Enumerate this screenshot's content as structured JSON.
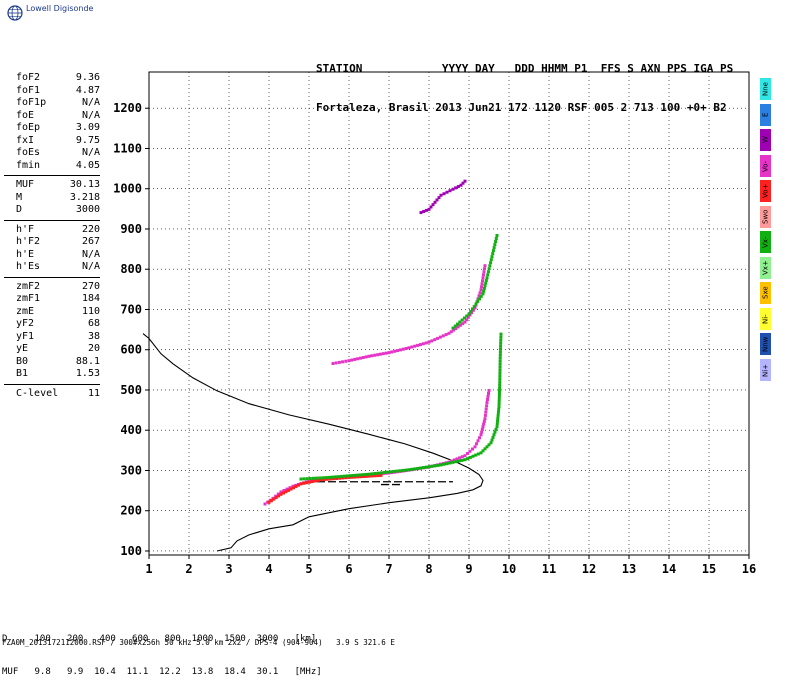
{
  "brand": {
    "logo_text": "Lowell Digisonde",
    "logo_icon": "globe-icon"
  },
  "header": {
    "line1": "STATION            YYYY DAY   DDD HHMM P1  FFS S AXN PPS IGA PS",
    "line2": "Fortaleza, Brasil 2013 Jun21 172 1120 RSF 005 2 713 100 +0+ B2"
  },
  "parameters": {
    "group1": [
      {
        "name": "foF2",
        "value": "9.36"
      },
      {
        "name": "foF1",
        "value": "4.87"
      },
      {
        "name": "foF1p",
        "value": "N/A"
      },
      {
        "name": "foE",
        "value": "N/A"
      },
      {
        "name": "foEp",
        "value": "3.09"
      },
      {
        "name": "fxI",
        "value": "9.75"
      },
      {
        "name": "foEs",
        "value": "N/A"
      },
      {
        "name": "fmin",
        "value": "4.05"
      }
    ],
    "group2": [
      {
        "name": "MUF",
        "value": "30.13"
      },
      {
        "name": "M",
        "value": "3.218"
      },
      {
        "name": "D",
        "value": "3000"
      }
    ],
    "group3": [
      {
        "name": "h'F",
        "value": "220"
      },
      {
        "name": "h'F2",
        "value": "267"
      },
      {
        "name": "h'E",
        "value": "N/A"
      },
      {
        "name": "h'Es",
        "value": "N/A"
      }
    ],
    "group4": [
      {
        "name": "zmF2",
        "value": "270"
      },
      {
        "name": "zmF1",
        "value": "184"
      },
      {
        "name": "zmE",
        "value": "110"
      },
      {
        "name": "yF2",
        "value": "68"
      },
      {
        "name": "yF1",
        "value": "38"
      },
      {
        "name": "yE",
        "value": "20"
      },
      {
        "name": "B0",
        "value": "88.1"
      },
      {
        "name": "B1",
        "value": "1.53"
      }
    ],
    "group5": [
      {
        "name": "C-level",
        "value": "11"
      }
    ]
  },
  "legend": [
    {
      "label": "Nne",
      "color": "#33e6e6"
    },
    {
      "label": "E",
      "color": "#2a7fe0"
    },
    {
      "label": "W",
      "color": "#a000b4"
    },
    {
      "label": "Vo-",
      "color": "#e633c8"
    },
    {
      "label": "Vo+",
      "color": "#ff2020"
    },
    {
      "label": "Swo",
      "color": "#ff9a9a"
    },
    {
      "label": "Vx-",
      "color": "#10b010"
    },
    {
      "label": "Vx+",
      "color": "#90f090"
    },
    {
      "label": "Sxe",
      "color": "#ffc000"
    },
    {
      "label": "Ni-",
      "color": "#ffff30"
    },
    {
      "label": "Nnw",
      "color": "#2050b0"
    },
    {
      "label": "Ni+",
      "color": "#b4b4ff"
    }
  ],
  "footer": {
    "d_row": "D     100   200   400   600   800  1000  1500  3000   [km]",
    "muf_row": "MUF   9.8   9.9  10.4  11.1  12.2  13.8  18.4  30.1   [MHz]",
    "file_line": "FZA0M_2013172112000.RSF / 300#x256h 50 kHz 5.0 km 2x2 / DPS-4 (904-904)   3.9 S 321.6 E"
  },
  "chart_data": {
    "type": "scatter",
    "title": "",
    "xlabel": "",
    "ylabel": "",
    "xlim": [
      1,
      16
    ],
    "ylim": [
      90,
      1290
    ],
    "x_ticks": [
      1,
      2,
      3,
      4,
      5,
      6,
      7,
      8,
      9,
      10,
      11,
      12,
      13,
      14,
      15,
      16
    ],
    "y_ticks": [
      100,
      200,
      300,
      400,
      500,
      600,
      700,
      800,
      900,
      1000,
      1100,
      1200
    ],
    "grid": "dotted",
    "series": [
      {
        "label_color": "#e633c8",
        "points": [
          [
            3.9,
            218
          ],
          [
            4.1,
            232
          ],
          [
            4.3,
            248
          ],
          [
            4.6,
            262
          ],
          [
            5.0,
            275
          ],
          [
            5.5,
            282
          ],
          [
            6.0,
            287
          ],
          [
            6.5,
            291
          ],
          [
            7.0,
            295
          ],
          [
            7.5,
            302
          ],
          [
            8.0,
            310
          ],
          [
            8.5,
            322
          ],
          [
            8.9,
            338
          ],
          [
            9.15,
            360
          ],
          [
            9.3,
            390
          ],
          [
            9.4,
            430
          ],
          [
            9.45,
            470
          ],
          [
            9.5,
            500
          ]
        ]
      },
      {
        "label_color": "#ff2020",
        "points": [
          [
            4.0,
            222
          ],
          [
            4.3,
            242
          ],
          [
            4.8,
            268
          ],
          [
            5.3,
            278
          ],
          [
            6.0,
            284
          ],
          [
            6.8,
            289
          ]
        ]
      },
      {
        "label_color": "#10b010",
        "points": [
          [
            4.8,
            280
          ],
          [
            5.5,
            284
          ],
          [
            6.5,
            292
          ],
          [
            7.5,
            303
          ],
          [
            8.3,
            315
          ],
          [
            8.9,
            328
          ],
          [
            9.3,
            345
          ],
          [
            9.55,
            370
          ],
          [
            9.7,
            410
          ],
          [
            9.75,
            460
          ],
          [
            9.77,
            520
          ],
          [
            9.78,
            580
          ],
          [
            9.8,
            640
          ]
        ]
      },
      {
        "label_color": "#e633c8",
        "points": [
          [
            5.6,
            567
          ],
          [
            6.0,
            574
          ],
          [
            6.5,
            585
          ],
          [
            7.0,
            594
          ],
          [
            7.5,
            606
          ],
          [
            8.0,
            620
          ],
          [
            8.5,
            642
          ],
          [
            8.9,
            670
          ],
          [
            9.15,
            705
          ],
          [
            9.3,
            750
          ],
          [
            9.35,
            780
          ],
          [
            9.4,
            810
          ]
        ]
      },
      {
        "label_color": "#a000b4",
        "points": [
          [
            7.8,
            942
          ],
          [
            8.0,
            950
          ],
          [
            8.3,
            985
          ],
          [
            8.6,
            1000
          ],
          [
            8.8,
            1010
          ],
          [
            8.9,
            1020
          ]
        ]
      },
      {
        "label_color": "#10b010",
        "points": [
          [
            8.6,
            655
          ],
          [
            9.0,
            690
          ],
          [
            9.35,
            740
          ],
          [
            9.45,
            780
          ],
          [
            9.7,
            885
          ]
        ]
      }
    ],
    "profile": [
      [
        0.85,
        640
      ],
      [
        1.0,
        628
      ],
      [
        1.3,
        590
      ],
      [
        1.6,
        565
      ],
      [
        2.1,
        530
      ],
      [
        2.7,
        498
      ],
      [
        3.5,
        466
      ],
      [
        4.5,
        438
      ],
      [
        5.5,
        415
      ],
      [
        6.5,
        390
      ],
      [
        7.4,
        366
      ],
      [
        8.1,
        343
      ],
      [
        8.7,
        320
      ],
      [
        9.0,
        306
      ],
      [
        9.25,
        290
      ],
      [
        9.35,
        275
      ],
      [
        9.3,
        262
      ],
      [
        9.1,
        252
      ],
      [
        8.7,
        243
      ],
      [
        8.0,
        232
      ],
      [
        7.0,
        220
      ],
      [
        6.0,
        205
      ],
      [
        5.0,
        185
      ],
      [
        4.6,
        165
      ],
      [
        4.0,
        155
      ],
      [
        3.5,
        140
      ],
      [
        3.2,
        125
      ],
      [
        3.05,
        108
      ],
      [
        2.7,
        100
      ]
    ],
    "dashed_segments": [
      [
        [
          5.2,
          272
        ],
        [
          8.6,
          272
        ]
      ],
      [
        [
          6.8,
          265
        ],
        [
          7.3,
          265
        ]
      ]
    ]
  }
}
